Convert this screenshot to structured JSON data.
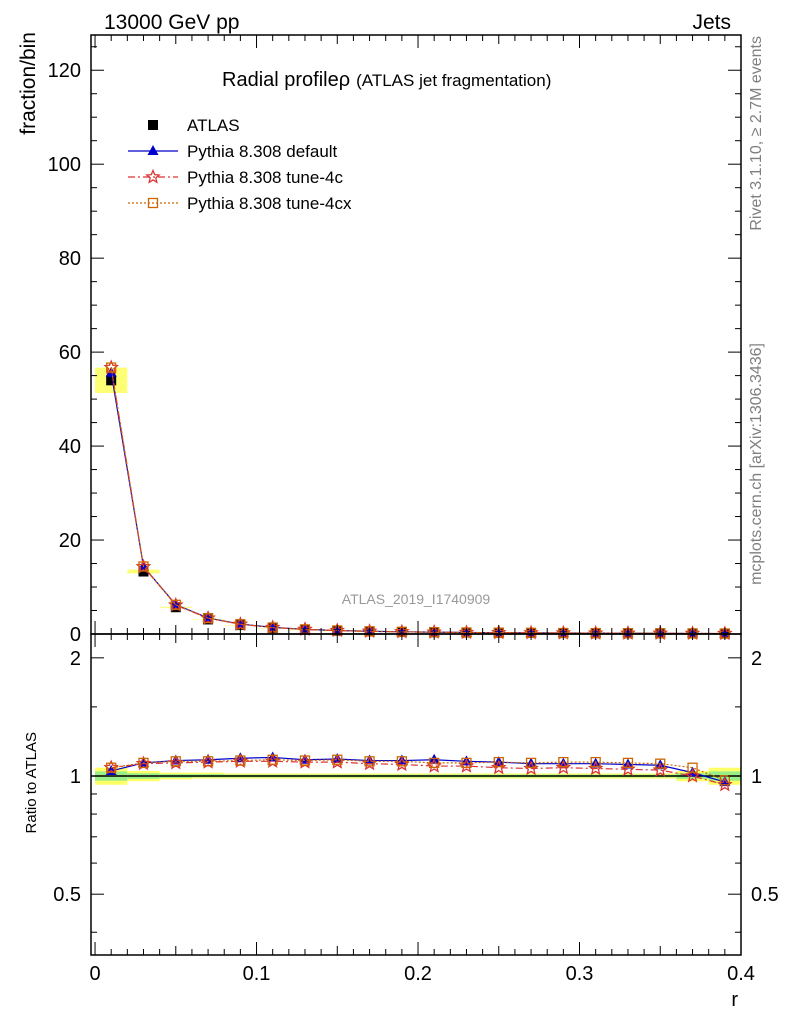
{
  "header": {
    "left": "13000 GeV pp",
    "right": "Jets"
  },
  "side_text": {
    "rivet": "Rivet 3.1.10, ≥ 2.7M events",
    "mcplots": "mcplots.cern.ch [arXiv:1306.3436]"
  },
  "chart_data": {
    "type": "scatter",
    "title": "Radial profileρ",
    "subtitle": "(ATLAS jet fragmentation)",
    "analysis_label": "ATLAS_2019_I1740909",
    "xlabel": "r",
    "ylabel": "fraction/bin",
    "ratio_ylabel": "Ratio to ATLAS",
    "xlim": [
      -0.0025,
      0.4
    ],
    "ylim": [
      0,
      127.5
    ],
    "ratio_ylim": [
      0.35,
      2.3
    ],
    "x_ticks": [
      "0",
      "0.1",
      "0.2",
      "0.3",
      "0.4"
    ],
    "y_ticks": [
      "0",
      "20",
      "40",
      "60",
      "80",
      "100",
      "120"
    ],
    "ratio_y_ticks": [
      "0.5",
      "1",
      "2"
    ],
    "legend_position": "top-left",
    "x": [
      0.01,
      0.03,
      0.05,
      0.07,
      0.09,
      0.11,
      0.13,
      0.15,
      0.17,
      0.19,
      0.21,
      0.23,
      0.25,
      0.27,
      0.29,
      0.31,
      0.33,
      0.35,
      0.37,
      0.39
    ],
    "series": [
      {
        "name": "ATLAS",
        "color": "#000000",
        "marker": "square-filled",
        "values": [
          54.0,
          13.3,
          5.7,
          3.1,
          1.9,
          1.26,
          0.9,
          0.68,
          0.53,
          0.43,
          0.36,
          0.3,
          0.26,
          0.23,
          0.2,
          0.18,
          0.16,
          0.14,
          0.12,
          0.1
        ],
        "band_lo": [
          0.95,
          0.97,
          0.98,
          0.985,
          0.985,
          0.985,
          0.985,
          0.985,
          0.985,
          0.985,
          0.985,
          0.985,
          0.985,
          0.985,
          0.985,
          0.985,
          0.985,
          0.985,
          0.97,
          0.95
        ],
        "band_hi": [
          1.05,
          1.03,
          1.02,
          1.02,
          1.015,
          1.015,
          1.015,
          1.015,
          1.015,
          1.015,
          1.015,
          1.015,
          1.015,
          1.015,
          1.015,
          1.015,
          1.015,
          1.015,
          1.03,
          1.05
        ]
      },
      {
        "name": "Pythia 8.308 default",
        "color": "#0000cc",
        "marker": "triangle-filled",
        "line": "solid",
        "ratio": [
          1.03,
          1.08,
          1.095,
          1.1,
          1.11,
          1.115,
          1.1,
          1.105,
          1.095,
          1.095,
          1.1,
          1.09,
          1.085,
          1.075,
          1.075,
          1.075,
          1.07,
          1.065,
          1.02,
          0.965
        ]
      },
      {
        "name": "Pythia 8.308 tune-4c",
        "color": "#dd3333",
        "marker": "star-open",
        "line": "dashdot",
        "ratio": [
          1.05,
          1.075,
          1.08,
          1.085,
          1.09,
          1.09,
          1.085,
          1.085,
          1.075,
          1.07,
          1.06,
          1.06,
          1.05,
          1.045,
          1.05,
          1.045,
          1.04,
          1.035,
          1.0,
          0.95
        ]
      },
      {
        "name": "Pythia 8.308 tune-4cx",
        "color": "#cc6600",
        "marker": "square-open",
        "line": "dotted",
        "ratio": [
          1.05,
          1.08,
          1.09,
          1.09,
          1.095,
          1.1,
          1.095,
          1.1,
          1.09,
          1.09,
          1.08,
          1.08,
          1.085,
          1.08,
          1.085,
          1.085,
          1.08,
          1.075,
          1.05,
          0.975
        ]
      }
    ]
  }
}
